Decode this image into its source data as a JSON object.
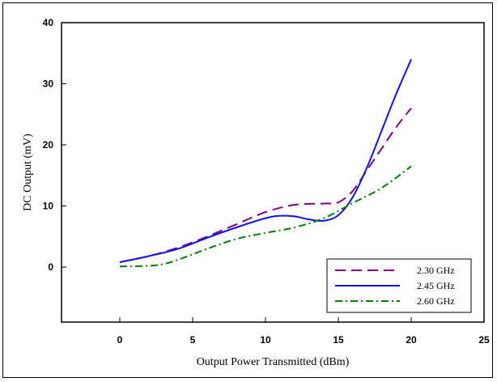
{
  "chart_data": {
    "type": "line",
    "title": "",
    "xlabel": "Output Power Transmitted (dBm)",
    "ylabel": "DC Output (mV)",
    "xlim": [
      -4,
      25
    ],
    "ylim": [
      -9,
      40
    ],
    "x_ticks": [
      0,
      5,
      10,
      15,
      20,
      25
    ],
    "y_ticks": [
      0,
      10,
      20,
      30,
      40
    ],
    "grid": false,
    "legend_position": "bottom-right",
    "series": [
      {
        "name": "2.30 GHz",
        "color": "#800080",
        "dash": "dashed",
        "x": [
          0,
          2,
          4,
          6,
          8,
          10,
          12,
          14,
          15,
          16,
          17,
          18,
          19,
          20
        ],
        "y": [
          0.8,
          1.8,
          3.2,
          5.0,
          7.0,
          9.0,
          10.2,
          10.4,
          10.6,
          12.5,
          16.0,
          19.5,
          23.0,
          26.0
        ]
      },
      {
        "name": "2.45 GHz",
        "color": "#1010ff",
        "dash": "solid",
        "x": [
          0,
          2,
          4,
          6,
          8,
          10,
          11,
          12,
          13,
          14,
          15,
          16,
          17,
          18,
          19,
          20
        ],
        "y": [
          0.8,
          1.8,
          3.0,
          4.8,
          6.5,
          8.0,
          8.4,
          8.3,
          7.8,
          7.6,
          8.5,
          11.5,
          16.5,
          22.5,
          28.5,
          34.0
        ]
      },
      {
        "name": "2.60 GHz",
        "color": "#008000",
        "dash": "dashdot",
        "x": [
          0,
          2,
          3,
          4,
          6,
          8,
          10,
          12,
          14,
          16,
          18,
          20
        ],
        "y": [
          0.1,
          0.2,
          0.5,
          1.2,
          3.0,
          4.6,
          5.6,
          6.5,
          8.0,
          10.5,
          13.0,
          16.5
        ]
      }
    ]
  }
}
